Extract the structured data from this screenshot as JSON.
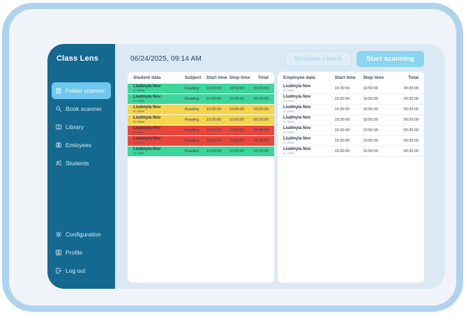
{
  "app": {
    "title": "Class Lens"
  },
  "sidebar": {
    "items": [
      {
        "label": "Folder scanner",
        "icon": "folder-scan",
        "active": true
      },
      {
        "label": "Book scanner",
        "icon": "book-scan",
        "active": false
      },
      {
        "label": "Library",
        "icon": "library",
        "active": false
      },
      {
        "label": "Emloyees",
        "icon": "employees",
        "active": false
      },
      {
        "label": "Students",
        "icon": "students",
        "active": false
      }
    ],
    "footer_items": [
      {
        "label": "Configuration",
        "icon": "gear"
      },
      {
        "label": "Profile",
        "icon": "profile"
      },
      {
        "label": "Log out",
        "icon": "logout"
      }
    ]
  },
  "header": {
    "datetime": "06/24/2025, 09:14 AM",
    "buttons": [
      {
        "label": "Session check",
        "style": "outline"
      },
      {
        "label": "Start scanning",
        "style": "filled"
      }
    ]
  },
  "student_table": {
    "columns": [
      "Student data",
      "Subject",
      "Start time",
      "Stop time",
      "Total"
    ],
    "rows": [
      {
        "name": "Liudmyla Nov",
        "subtitle": "in class",
        "subject": "Reading",
        "start": "10:30:00",
        "stop": "10:50:00",
        "total": "00:20:00",
        "status": "green"
      },
      {
        "name": "Liudmyla Nov",
        "subtitle": "in class",
        "subject": "Reading",
        "start": "10:30:00",
        "stop": "10:50:00",
        "total": "00:20:00",
        "status": "green"
      },
      {
        "name": "Liudmyla Nov",
        "subtitle": "in class",
        "subject": "Reading",
        "start": "10:30:00",
        "stop": "10:50:00",
        "total": "00:20:00",
        "status": "yellow"
      },
      {
        "name": "Liudmyla Nov",
        "subtitle": "in class",
        "subject": "Reading",
        "start": "10:30:00",
        "stop": "10:50:00",
        "total": "00:20:00",
        "status": "yellow"
      },
      {
        "name": "Liudmyla Nov",
        "subtitle": "in class",
        "subject": "Reading",
        "start": "10:30:00",
        "stop": "10:50:00",
        "total": "00:20:00",
        "status": "red"
      },
      {
        "name": "Liudmyla Nov",
        "subtitle": "in class",
        "subject": "Reading",
        "start": "10:30:00",
        "stop": "10:50:00",
        "total": "00:20:00",
        "status": "red"
      },
      {
        "name": "Liudmyla Nov",
        "subtitle": "in class",
        "subject": "Reading",
        "start": "10:30:00",
        "stop": "10:50:00",
        "total": "00:20:00",
        "status": "green"
      }
    ]
  },
  "employee_table": {
    "columns": [
      "Employee data",
      "Start time",
      "Stop time",
      "Total"
    ],
    "rows": [
      {
        "name": "Liudmyla Nov",
        "subtitle": "in class",
        "start": "10:30:00",
        "stop": "10:50:00",
        "total": "00:20:00"
      },
      {
        "name": "Liudmyla Nov",
        "subtitle": "in class",
        "start": "10:30:00",
        "stop": "10:50:00",
        "total": "00:20:00"
      },
      {
        "name": "Liudmyla Nov",
        "subtitle": "in class",
        "start": "10:30:00",
        "stop": "10:50:00",
        "total": "00:20:00"
      },
      {
        "name": "Liudmyla Nov",
        "subtitle": "in class",
        "start": "10:30:00",
        "stop": "10:50:00",
        "total": "00:20:00"
      },
      {
        "name": "Liudmyla Nov",
        "subtitle": "in class",
        "start": "10:30:00",
        "stop": "10:50:00",
        "total": "00:20:00"
      },
      {
        "name": "Liudmyla Nov",
        "subtitle": "in class",
        "start": "10:30:00",
        "stop": "10:50:00",
        "total": "00:20:00"
      },
      {
        "name": "Liudmyla Nov",
        "subtitle": "in class",
        "start": "10:30:00",
        "stop": "10:50:00",
        "total": "00:20:00"
      }
    ]
  },
  "colors": {
    "frame": "#b0d3ed",
    "window": "#f0f4f9",
    "sidebar": "#13698f",
    "sidebar_active": "#6dc7ee",
    "content_bg": "#dbe9f5",
    "accent_button": "#8bd4f2",
    "outline_button_text": "#a6dcf5",
    "status": {
      "green": "#3ed59b",
      "yellow": "#f6d44c",
      "red": "#e9463e"
    }
  }
}
